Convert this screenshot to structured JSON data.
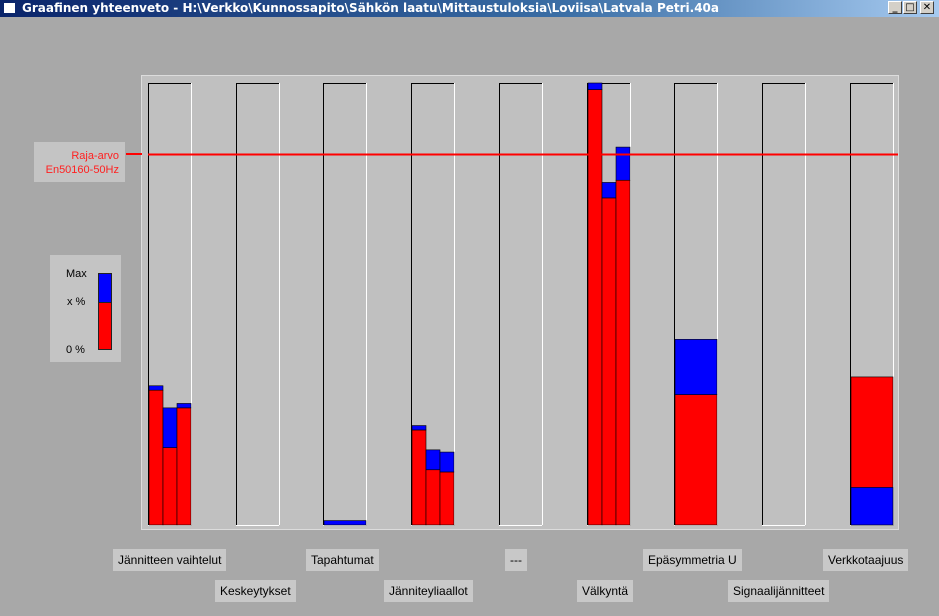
{
  "window": {
    "title": "Graafinen yhteenveto - H:\\Verkko\\Kunnossapito\\Sähkön laatu\\Mittaustuloksia\\Loviisa\\Latvala Petri.40a",
    "minimize_glyph": "_",
    "maximize_glyph": "□",
    "close_glyph": "✕"
  },
  "limit": {
    "label_line1": "Raja-arvo",
    "label_line2": "En50160-50Hz"
  },
  "legend": {
    "max": "Max",
    "x": "x %",
    "zero": "0 %"
  },
  "categories": {
    "row1": [
      "Jännitteen vaihtelut",
      "Tapahtumat",
      "---",
      "Epäsymmetria U",
      "Verkkotaajuus"
    ],
    "row2": [
      "Keskeytykset",
      "Jänniteyliaallot",
      "Välkyntä",
      "Signaalijännitteet"
    ]
  },
  "colors": {
    "x_percent": "#ff0000",
    "max": "#0000ff",
    "limit_line": "#ff0000"
  },
  "chart_data": {
    "type": "bar",
    "title": "",
    "ylim": [
      0,
      100
    ],
    "limit_value": 84,
    "groups": [
      {
        "name": "Jännitteen vaihtelut",
        "bars": [
          {
            "x": 30.5,
            "max": 31.5
          },
          {
            "x": 17.5,
            "max": 26.5
          },
          {
            "x": 26.5,
            "max": 27.5
          }
        ]
      },
      {
        "name": "Keskeytykset",
        "bars": []
      },
      {
        "name": "Tapahtumat",
        "bars": [
          {
            "x": 0,
            "max": 1
          }
        ]
      },
      {
        "name": "Jänniteyliaallot",
        "bars": [
          {
            "x": 21.5,
            "max": 22.5
          },
          {
            "x": 12.5,
            "max": 17
          },
          {
            "x": 12,
            "max": 16.5
          }
        ]
      },
      {
        "name": "---",
        "bars": []
      },
      {
        "name": "Välkyntä",
        "bars": [
          {
            "x": 98.5,
            "max": 100
          },
          {
            "x": 74,
            "max": 77.5
          },
          {
            "x": 78,
            "max": 85.5
          }
        ]
      },
      {
        "name": "Epäsymmetria U",
        "bars": [
          {
            "x": 29.5,
            "max": 42
          }
        ]
      },
      {
        "name": "Signaalijännitteet",
        "bars": []
      },
      {
        "name": "Verkkotaajuus",
        "bars": [
          {
            "x": 33.5,
            "max": 8.5
          }
        ]
      }
    ]
  }
}
